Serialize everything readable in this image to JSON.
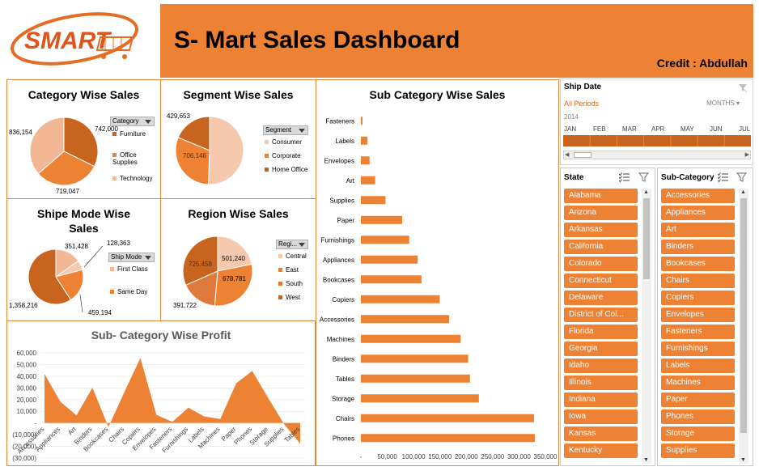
{
  "header": {
    "logo_text": "SMART",
    "title": "S- Mart Sales Dashboard",
    "credit": "Credit : Abdullah"
  },
  "colors": {
    "orange": "#ee8234",
    "dark": "#c9641f",
    "light": "#f2b896",
    "lightest": "#f6c8ad"
  },
  "chart_data": [
    {
      "type": "pie",
      "title": "Category Wise Sales",
      "legend_title": "Category",
      "categories": [
        "Furniture",
        "Office Supplies",
        "Technology"
      ],
      "values": [
        742000,
        719047,
        836154
      ],
      "labels": [
        "742,000",
        "719,047",
        "836,154"
      ]
    },
    {
      "type": "pie",
      "title": "Segment Wise Sales",
      "legend_title": "Segment",
      "categories": [
        "Consumer",
        "Corporate",
        "Home Office"
      ],
      "values": [
        1161401,
        706146,
        429653
      ],
      "labels": [
        "706,146",
        "429,653"
      ]
    },
    {
      "type": "pie",
      "title": "Shipe Mode Wise Sales",
      "legend_title": "Ship Mode",
      "categories": [
        "First Class",
        "Same Day"
      ],
      "values": [
        351428,
        128363,
        459194,
        1358216
      ],
      "labels": [
        "351,428",
        "128,363",
        "459,194",
        "1,358,216"
      ]
    },
    {
      "type": "pie",
      "title": "Region Wise Sales",
      "legend_title": "Regi...",
      "categories": [
        "Central",
        "East",
        "South",
        "West"
      ],
      "values": [
        501240,
        678781,
        391722,
        725458
      ],
      "labels": [
        "501,240",
        "678,781",
        "391,722",
        "725,458"
      ]
    },
    {
      "type": "area",
      "title": "Sub- Category Wise Profit",
      "categories": [
        "Accessories",
        "Appliances",
        "Art",
        "Binders",
        "Bookcases",
        "Chairs",
        "Copiers",
        "Envelopes",
        "Fasteners",
        "Furnishings",
        "Labels",
        "Machines",
        "Paper",
        "Phones",
        "Storage",
        "Supplies",
        "Tables"
      ],
      "values": [
        41937,
        18138,
        6528,
        30222,
        -3473,
        26590,
        55618,
        6964,
        950,
        13059,
        5546,
        3385,
        34053,
        44516,
        21279,
        -1189,
        -17725
      ],
      "yticks": [
        "60,000",
        "50,000",
        "40,000",
        "30,000",
        "20,000",
        "10,000",
        "-",
        "(10,000)",
        "(20,000)",
        "(30,000)"
      ],
      "ylim": [
        -30000,
        60000
      ]
    },
    {
      "type": "bar",
      "title": "Sub Category Wise Sales",
      "categories": [
        "Fasteners",
        "Labels",
        "Envelopes",
        "Art",
        "Supplies",
        "Paper",
        "Furnishings",
        "Appliances",
        "Bookcases",
        "Copiers",
        "Accessories",
        "Machines",
        "Binders",
        "Tables",
        "Storage",
        "Chairs",
        "Phones"
      ],
      "values": [
        3024,
        12486,
        16476,
        27119,
        46674,
        78479,
        91705,
        107532,
        114880,
        149528,
        167380,
        189239,
        203413,
        206966,
        223844,
        328449,
        330007
      ],
      "xticks": [
        "-",
        "50,000",
        "100,000",
        "150,000",
        "200,000",
        "250,000",
        "300,000",
        "350,000"
      ],
      "xlim": [
        0,
        350000
      ]
    }
  ],
  "timeline": {
    "title": "Ship Date",
    "period": "All Periods",
    "level": "MONTHS",
    "year": "2014",
    "months": [
      "JAN",
      "FEB",
      "MAR",
      "APR",
      "MAY",
      "JUN",
      "JUL"
    ]
  },
  "state_slicer": {
    "title": "State",
    "items": [
      "Alabama",
      "Arizona",
      "Arkansas",
      "California",
      "Colorado",
      "Connecticut",
      "Delaware",
      "District of Col...",
      "Florida",
      "Georgia",
      "Idaho",
      "Illinois",
      "Indiana",
      "Iowa",
      "Kansas",
      "Kentucky"
    ]
  },
  "subcat_slicer": {
    "title": "Sub-Category",
    "items": [
      "Accessories",
      "Appliances",
      "Art",
      "Binders",
      "Bookcases",
      "Chairs",
      "Copiers",
      "Envelopes",
      "Fasteners",
      "Furnishings",
      "Labels",
      "Machines",
      "Paper",
      "Phones",
      "Storage",
      "Supplies"
    ]
  }
}
